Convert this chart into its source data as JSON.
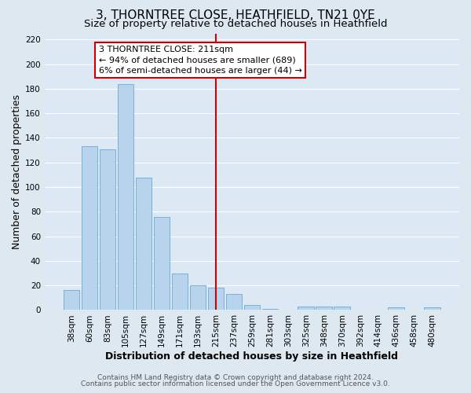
{
  "title": "3, THORNTREE CLOSE, HEATHFIELD, TN21 0YE",
  "subtitle": "Size of property relative to detached houses in Heathfield",
  "xlabel": "Distribution of detached houses by size in Heathfield",
  "ylabel": "Number of detached properties",
  "bar_labels": [
    "38sqm",
    "60sqm",
    "83sqm",
    "105sqm",
    "127sqm",
    "149sqm",
    "171sqm",
    "193sqm",
    "215sqm",
    "237sqm",
    "259sqm",
    "281sqm",
    "303sqm",
    "325sqm",
    "348sqm",
    "370sqm",
    "392sqm",
    "414sqm",
    "436sqm",
    "458sqm",
    "480sqm"
  ],
  "bar_values": [
    16,
    133,
    131,
    184,
    108,
    76,
    30,
    20,
    18,
    13,
    4,
    1,
    0,
    3,
    3,
    3,
    0,
    0,
    2,
    0,
    2
  ],
  "bar_color": "#b8d4ec",
  "bar_edge_color": "#6aaad4",
  "vline_index": 8,
  "vline_color": "#cc0000",
  "ylim": [
    0,
    225
  ],
  "yticks": [
    0,
    20,
    40,
    60,
    80,
    100,
    120,
    140,
    160,
    180,
    200,
    220
  ],
  "annotation_text": "3 THORNTREE CLOSE: 211sqm\n← 94% of detached houses are smaller (689)\n6% of semi-detached houses are larger (44) →",
  "annotation_box_color": "#ffffff",
  "annotation_box_edge": "#cc0000",
  "footer_line1": "Contains HM Land Registry data © Crown copyright and database right 2024.",
  "footer_line2": "Contains public sector information licensed under the Open Government Licence v3.0.",
  "background_color": "#dde8f0",
  "plot_bg_color": "#dce8f4",
  "grid_color": "#ffffff",
  "title_fontsize": 11,
  "subtitle_fontsize": 9.5,
  "axis_label_fontsize": 9,
  "tick_fontsize": 7.5,
  "annotation_fontsize": 8,
  "footer_fontsize": 6.5
}
